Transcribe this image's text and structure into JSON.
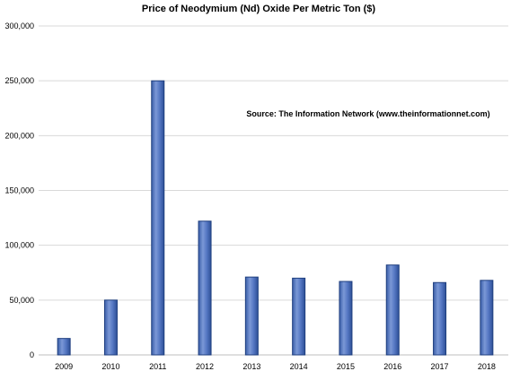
{
  "chart_data": {
    "type": "bar",
    "title": "Price of Neodymium (Nd)  Oxide Per Metric Ton ($)",
    "annotation": "Source: The Information  Network (www.theinformationnet.com)",
    "categories": [
      "2009",
      "2010",
      "2011",
      "2012",
      "2013",
      "2014",
      "2015",
      "2016",
      "2017",
      "2018"
    ],
    "values": [
      15000,
      50000,
      250000,
      122000,
      71000,
      70000,
      67000,
      82000,
      66000,
      68000
    ],
    "ylim": [
      0,
      300000
    ],
    "yticks": [
      "0",
      "50,000",
      "100,000",
      "150,000",
      "200,000",
      "250,000",
      "300,000"
    ],
    "xlabel": "",
    "ylabel": "",
    "grid": true,
    "bar_color": "#4f72bd",
    "bar_edge_color": "#1f3f7f"
  }
}
